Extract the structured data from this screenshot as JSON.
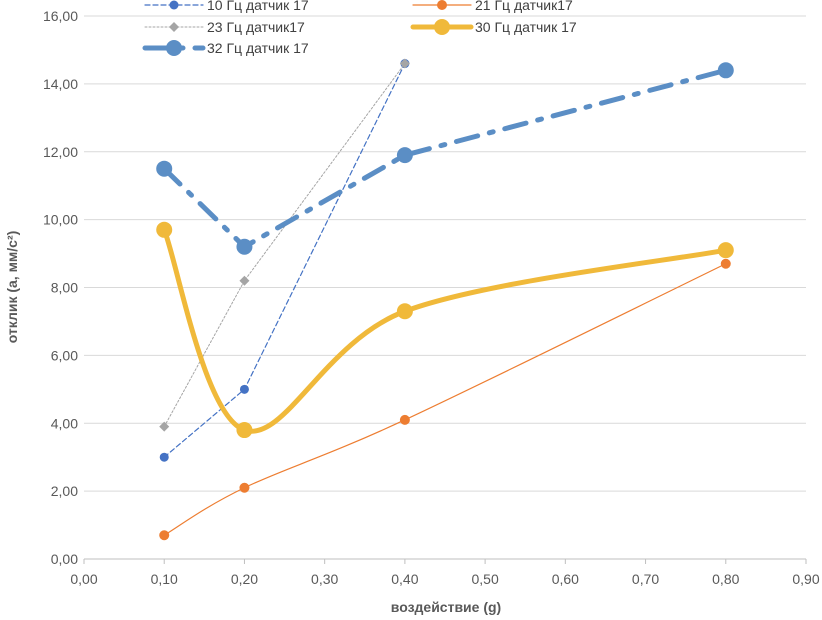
{
  "chart_data": {
    "type": "line",
    "xlabel": "воздействие (g)",
    "ylabel": "отклик (a, мм/с²)",
    "xlim": [
      0,
      0.9
    ],
    "ylim": [
      0,
      16
    ],
    "xticks": [
      0,
      0.1,
      0.2,
      0.3,
      0.4,
      0.5,
      0.6,
      0.7,
      0.8,
      0.9
    ],
    "yticks": [
      0,
      2,
      4,
      6,
      8,
      10,
      12,
      14,
      16
    ],
    "xtick_labels": [
      "0,00",
      "0,10",
      "0,20",
      "0,30",
      "0,40",
      "0,50",
      "0,60",
      "0,70",
      "0,80",
      "0,90"
    ],
    "ytick_labels": [
      "0,00",
      "2,00",
      "4,00",
      "6,00",
      "8,00",
      "10,00",
      "12,00",
      "14,00",
      "16,00"
    ],
    "grid": "horizontal",
    "legend_position": "top",
    "series": [
      {
        "name": "10 Гц датчик 17",
        "x": [
          0.1,
          0.2,
          0.4
        ],
        "y": [
          3.0,
          5.0,
          14.6
        ],
        "color": "#4472c4",
        "style": "dashed",
        "smooth": false
      },
      {
        "name": "21 Гц датчик17",
        "x": [
          0.1,
          0.2,
          0.4,
          0.8
        ],
        "y": [
          0.7,
          2.1,
          4.1,
          8.7
        ],
        "color": "#ed7d31",
        "style": "solid",
        "smooth": true
      },
      {
        "name": "23 Гц датчик17",
        "x": [
          0.1,
          0.2,
          0.4
        ],
        "y": [
          3.9,
          8.2,
          14.6
        ],
        "color": "#a5a5a5",
        "style": "dotted",
        "smooth": false
      },
      {
        "name": "30 Гц датчик 17",
        "x": [
          0.1,
          0.2,
          0.4,
          0.8
        ],
        "y": [
          9.7,
          3.8,
          7.3,
          9.1
        ],
        "color": "#f0b93a",
        "style": "thick",
        "smooth": true
      },
      {
        "name": "32 Гц датчик 17",
        "x": [
          0.1,
          0.2,
          0.4,
          0.8
        ],
        "y": [
          11.5,
          9.2,
          11.9,
          14.4
        ],
        "color": "#5b8ec5",
        "style": "dashdot",
        "smooth": false
      }
    ]
  }
}
